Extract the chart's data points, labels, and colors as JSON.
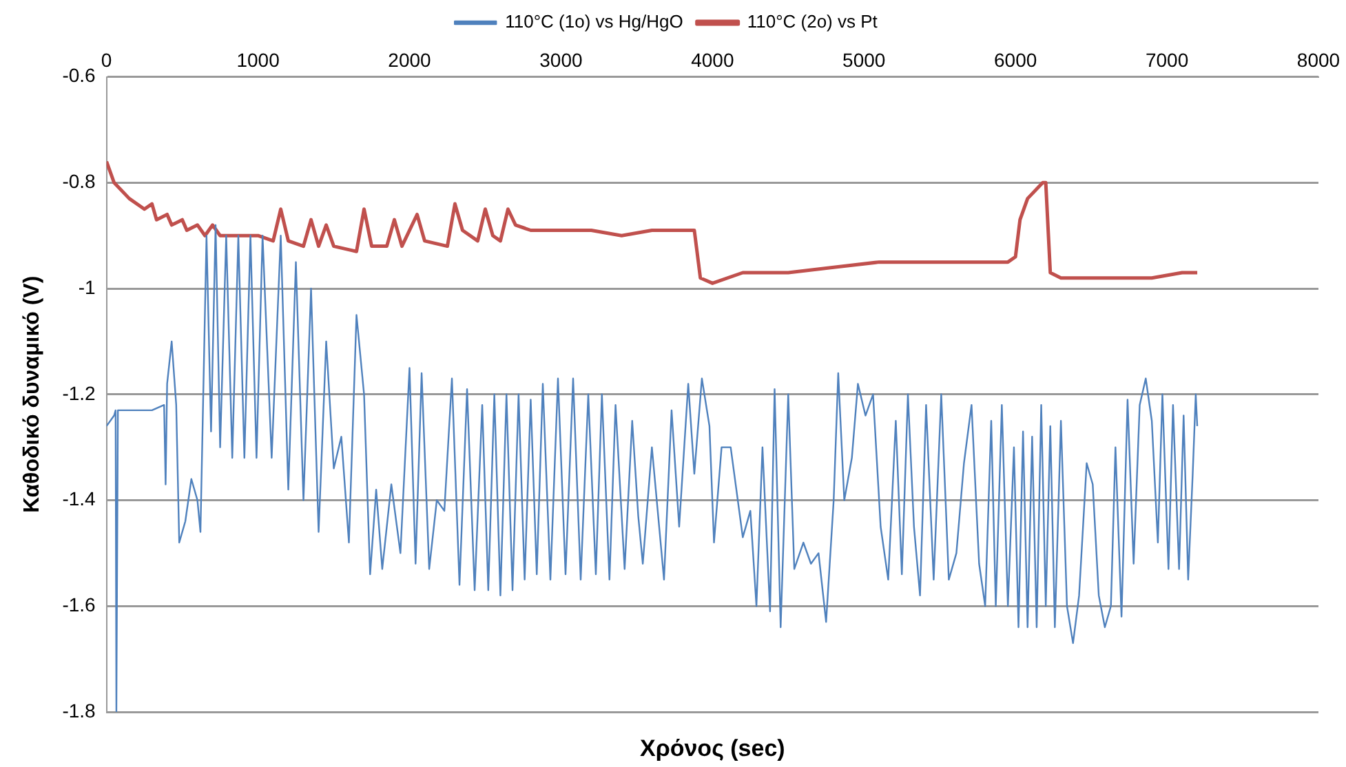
{
  "chart_data": {
    "type": "line",
    "xlabel": "Χρόνος (sec)",
    "ylabel": "Καθοδικό δυναμικό (V)",
    "xlim": [
      0,
      8000
    ],
    "xticks": [
      0,
      1000,
      2000,
      3000,
      4000,
      5000,
      6000,
      7000,
      8000
    ],
    "ylim": [
      -1.8,
      -0.6
    ],
    "yticks": [
      -1.8,
      -1.6,
      -1.4,
      -1.2,
      -1,
      -0.8,
      -0.6
    ],
    "grid": "y",
    "legend": "top",
    "marker": "none",
    "line_style": "solid",
    "series": [
      {
        "name": "110°C (1ο) vs Hg/HgO",
        "color": "#4f81bd",
        "x": [
          0,
          50,
          60,
          65,
          75,
          300,
          380,
          390,
          400,
          430,
          460,
          480,
          520,
          560,
          600,
          620,
          660,
          690,
          720,
          750,
          790,
          830,
          870,
          910,
          950,
          990,
          1030,
          1090,
          1150,
          1200,
          1250,
          1300,
          1350,
          1400,
          1450,
          1500,
          1550,
          1600,
          1650,
          1700,
          1740,
          1780,
          1820,
          1880,
          1940,
          2000,
          2040,
          2080,
          2130,
          2180,
          2230,
          2280,
          2330,
          2380,
          2430,
          2480,
          2520,
          2560,
          2600,
          2640,
          2680,
          2720,
          2760,
          2800,
          2840,
          2880,
          2930,
          2980,
          3030,
          3080,
          3130,
          3180,
          3230,
          3270,
          3320,
          3360,
          3420,
          3470,
          3510,
          3540,
          3600,
          3680,
          3730,
          3780,
          3840,
          3880,
          3930,
          3980,
          4010,
          4060,
          4120,
          4200,
          4250,
          4290,
          4330,
          4380,
          4410,
          4450,
          4500,
          4540,
          4600,
          4650,
          4700,
          4750,
          4800,
          4830,
          4870,
          4920,
          4960,
          5010,
          5060,
          5110,
          5160,
          5210,
          5250,
          5290,
          5330,
          5370,
          5410,
          5460,
          5510,
          5560,
          5610,
          5660,
          5710,
          5760,
          5800,
          5840,
          5870,
          5910,
          5950,
          5990,
          6020,
          6050,
          6080,
          6110,
          6140,
          6170,
          6200,
          6230,
          6260,
          6300,
          6340,
          6380,
          6420,
          6470,
          6510,
          6550,
          6590,
          6630,
          6660,
          6700,
          6740,
          6780,
          6820,
          6860,
          6900,
          6940,
          6970,
          7010,
          7040,
          7080,
          7110,
          7140,
          7170,
          7190,
          7200
        ],
        "values": [
          -1.26,
          -1.24,
          -1.23,
          -1.8,
          -1.23,
          -1.23,
          -1.22,
          -1.37,
          -1.18,
          -1.1,
          -1.22,
          -1.48,
          -1.44,
          -1.36,
          -1.4,
          -1.46,
          -0.9,
          -1.27,
          -0.88,
          -1.3,
          -0.9,
          -1.32,
          -0.9,
          -1.32,
          -0.9,
          -1.32,
          -0.9,
          -1.32,
          -0.9,
          -1.38,
          -0.95,
          -1.4,
          -1,
          -1.46,
          -1.1,
          -1.34,
          -1.28,
          -1.48,
          -1.05,
          -1.2,
          -1.54,
          -1.38,
          -1.53,
          -1.37,
          -1.5,
          -1.15,
          -1.52,
          -1.16,
          -1.53,
          -1.4,
          -1.42,
          -1.17,
          -1.56,
          -1.19,
          -1.57,
          -1.22,
          -1.57,
          -1.2,
          -1.58,
          -1.2,
          -1.57,
          -1.2,
          -1.55,
          -1.21,
          -1.54,
          -1.18,
          -1.55,
          -1.17,
          -1.54,
          -1.17,
          -1.55,
          -1.2,
          -1.54,
          -1.2,
          -1.55,
          -1.22,
          -1.53,
          -1.25,
          -1.43,
          -1.52,
          -1.3,
          -1.55,
          -1.23,
          -1.45,
          -1.18,
          -1.35,
          -1.17,
          -1.26,
          -1.48,
          -1.3,
          -1.3,
          -1.47,
          -1.42,
          -1.6,
          -1.3,
          -1.61,
          -1.19,
          -1.64,
          -1.2,
          -1.53,
          -1.48,
          -1.52,
          -1.5,
          -1.63,
          -1.4,
          -1.16,
          -1.4,
          -1.32,
          -1.18,
          -1.24,
          -1.2,
          -1.45,
          -1.55,
          -1.25,
          -1.54,
          -1.2,
          -1.45,
          -1.58,
          -1.22,
          -1.55,
          -1.2,
          -1.55,
          -1.5,
          -1.33,
          -1.22,
          -1.52,
          -1.6,
          -1.25,
          -1.6,
          -1.22,
          -1.6,
          -1.3,
          -1.64,
          -1.27,
          -1.64,
          -1.28,
          -1.64,
          -1.22,
          -1.6,
          -1.26,
          -1.64,
          -1.25,
          -1.6,
          -1.67,
          -1.58,
          -1.33,
          -1.37,
          -1.58,
          -1.64,
          -1.6,
          -1.3,
          -1.62,
          -1.21,
          -1.52,
          -1.22,
          -1.17,
          -1.25,
          -1.48,
          -1.2,
          -1.53,
          -1.22,
          -1.53,
          -1.24,
          -1.55,
          -1.35,
          -1.2,
          -1.26
        ]
      },
      {
        "name": "110°C (2ο) vs Pt",
        "color": "#c0504d",
        "x": [
          0,
          50,
          150,
          250,
          300,
          330,
          400,
          430,
          500,
          530,
          600,
          650,
          700,
          750,
          900,
          1000,
          1100,
          1150,
          1200,
          1300,
          1350,
          1400,
          1450,
          1500,
          1650,
          1700,
          1750,
          1850,
          1900,
          1950,
          2050,
          2100,
          2250,
          2300,
          2350,
          2450,
          2500,
          2550,
          2600,
          2650,
          2700,
          2800,
          3000,
          3200,
          3400,
          3600,
          3850,
          3880,
          3920,
          4000,
          4200,
          4500,
          4800,
          5100,
          5400,
          5700,
          5950,
          6000,
          6030,
          6080,
          6180,
          6200,
          6230,
          6300,
          6500,
          6700,
          6900,
          7100,
          7200
        ],
        "values": [
          -0.76,
          -0.8,
          -0.83,
          -0.85,
          -0.84,
          -0.87,
          -0.86,
          -0.88,
          -0.87,
          -0.89,
          -0.88,
          -0.9,
          -0.88,
          -0.9,
          -0.9,
          -0.9,
          -0.91,
          -0.85,
          -0.91,
          -0.92,
          -0.87,
          -0.92,
          -0.88,
          -0.92,
          -0.93,
          -0.85,
          -0.92,
          -0.92,
          -0.87,
          -0.92,
          -0.86,
          -0.91,
          -0.92,
          -0.84,
          -0.89,
          -0.91,
          -0.85,
          -0.9,
          -0.91,
          -0.85,
          -0.88,
          -0.89,
          -0.89,
          -0.89,
          -0.9,
          -0.89,
          -0.89,
          -0.89,
          -0.98,
          -0.99,
          -0.97,
          -0.97,
          -0.96,
          -0.95,
          -0.95,
          -0.95,
          -0.95,
          -0.94,
          -0.87,
          -0.83,
          -0.8,
          -0.8,
          -0.97,
          -0.98,
          -0.98,
          -0.98,
          -0.98,
          -0.97,
          -0.97
        ]
      }
    ]
  }
}
